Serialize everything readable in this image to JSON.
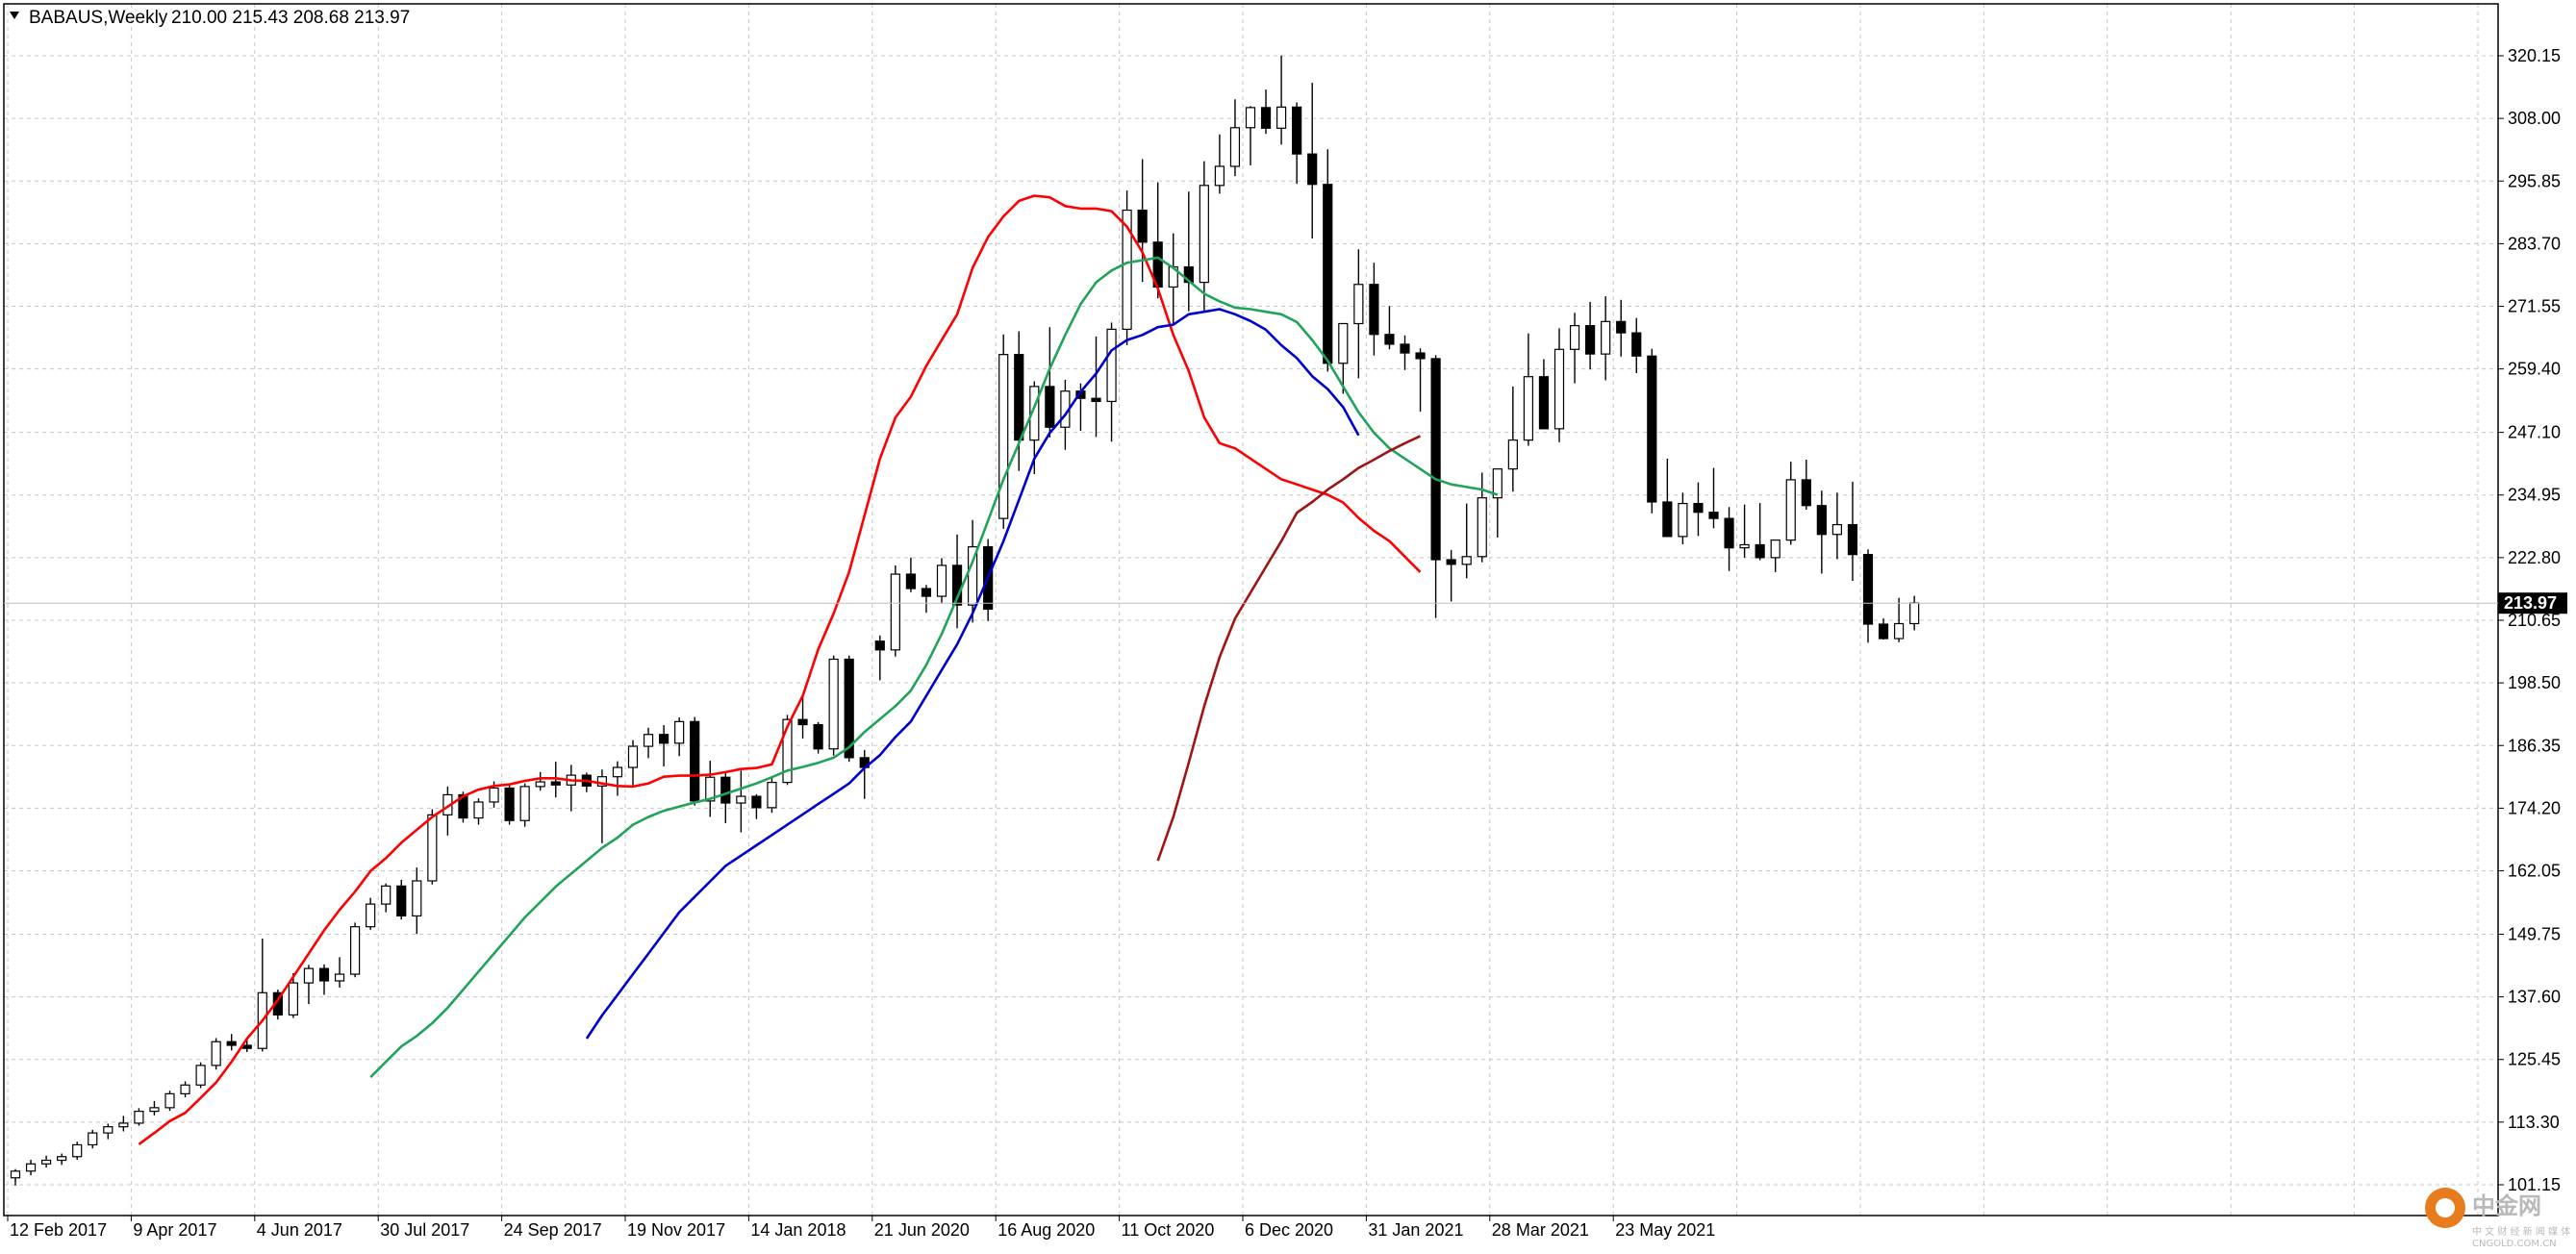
{
  "header": {
    "symbol": "BABAUS,Weekly",
    "ohlc": "210.00 215.43 208.68 213.97"
  },
  "current_price_label": "213.97",
  "watermark": {
    "brand_cn": "中金网",
    "sub_cn": "中 文 财 经 新 闻 媒 体",
    "sub_en": "CNGOLD.COM.CN"
  },
  "colors": {
    "background": "#ffffff",
    "grid": "#c8c8c8",
    "bull_body": "#ffffff",
    "bear_body": "#000000",
    "ma_fast": "#ff0000",
    "ma_mid": "#21a35a",
    "ma_slow": "#0000cd",
    "ma_long": "#a01414"
  },
  "chart_data": {
    "type": "candlestick",
    "title": "BABAUS,Weekly",
    "y_ticks": [
      320.15,
      308.0,
      295.85,
      283.7,
      271.55,
      259.4,
      247.1,
      234.95,
      222.8,
      210.65,
      198.5,
      186.35,
      174.2,
      162.05,
      149.75,
      137.6,
      125.45,
      113.3,
      101.15
    ],
    "y_tick_labels": [
      "320.15",
      "308.00",
      "295.85",
      "283.70",
      "271.55",
      "259.40",
      "247.10",
      "234.95",
      "222.80",
      "210.65",
      "198.50",
      "186.35",
      "174.20",
      "162.05",
      "149.75",
      "137.60",
      "125.45",
      "113.30",
      "101.15"
    ],
    "ylim": [
      96.5,
      324.0
    ],
    "x_tick_labels": [
      "12 Feb 2017",
      "9 Apr 2017",
      "4 Jun 2017",
      "30 Jul 2017",
      "24 Sep 2017",
      "19 Nov 2017",
      "14 Jan 2018",
      "21 Jun 2020",
      "16 Aug 2020",
      "11 Oct 2020",
      "6 Dec 2020",
      "31 Jan 2021",
      "28 Mar 2021",
      "23 May 2021"
    ],
    "x_tick_bar_index": [
      0,
      8,
      16,
      24,
      32,
      40,
      48,
      56,
      64,
      72,
      80,
      88,
      96,
      104
    ],
    "bars": [
      [
        102.5,
        104.2,
        101.0,
        103.8
      ],
      [
        103.8,
        106.0,
        103.0,
        105.2
      ],
      [
        105.2,
        106.8,
        104.5,
        105.9
      ],
      [
        105.9,
        107.2,
        105.0,
        106.6
      ],
      [
        106.6,
        109.5,
        106.0,
        108.9
      ],
      [
        108.9,
        111.8,
        108.2,
        111.2
      ],
      [
        111.2,
        113.0,
        110.0,
        112.4
      ],
      [
        112.4,
        114.5,
        111.5,
        113.1
      ],
      [
        113.1,
        116.0,
        112.6,
        115.4
      ],
      [
        115.4,
        117.4,
        114.6,
        116.1
      ],
      [
        116.1,
        119.4,
        115.5,
        118.8
      ],
      [
        118.8,
        121.2,
        118.1,
        120.5
      ],
      [
        120.5,
        124.9,
        119.9,
        124.3
      ],
      [
        124.3,
        129.6,
        123.5,
        128.9
      ],
      [
        128.9,
        130.4,
        127.2,
        128.2
      ],
      [
        128.2,
        129.3,
        126.9,
        127.6
      ],
      [
        127.6,
        148.9,
        127.0,
        138.4
      ],
      [
        138.4,
        139.0,
        133.2,
        134.1
      ],
      [
        134.1,
        142.2,
        133.5,
        140.3
      ],
      [
        140.3,
        143.8,
        136.2,
        143.1
      ],
      [
        143.1,
        143.9,
        138.0,
        140.7
      ],
      [
        140.7,
        145.3,
        139.4,
        142.0
      ],
      [
        142.0,
        152.0,
        141.4,
        151.2
      ],
      [
        151.2,
        156.8,
        150.6,
        155.6
      ],
      [
        155.6,
        159.6,
        154.0,
        159.1
      ],
      [
        159.1,
        160.3,
        152.6,
        153.3
      ],
      [
        153.3,
        162.7,
        149.8,
        160.1
      ],
      [
        160.1,
        174.0,
        159.4,
        172.9
      ],
      [
        172.9,
        178.4,
        168.9,
        176.8
      ],
      [
        176.8,
        177.4,
        171.4,
        172.3
      ],
      [
        172.3,
        176.1,
        171.0,
        175.4
      ],
      [
        175.4,
        179.4,
        174.3,
        178.1
      ],
      [
        178.1,
        179.0,
        171.0,
        171.8
      ],
      [
        171.8,
        179.0,
        170.6,
        178.4
      ],
      [
        178.4,
        181.2,
        177.6,
        179.3
      ],
      [
        179.3,
        183.2,
        176.3,
        178.7
      ],
      [
        178.7,
        182.6,
        173.6,
        180.6
      ],
      [
        180.6,
        181.1,
        177.3,
        178.5
      ],
      [
        178.5,
        181.7,
        167.4,
        180.3
      ],
      [
        180.3,
        183.3,
        176.6,
        182.1
      ],
      [
        182.1,
        187.4,
        178.6,
        186.2
      ],
      [
        186.2,
        189.8,
        183.9,
        188.5
      ],
      [
        188.5,
        190.3,
        182.3,
        186.8
      ],
      [
        186.8,
        191.8,
        184.3,
        191.0
      ],
      [
        191.0,
        191.9,
        174.7,
        175.6
      ],
      [
        175.6,
        183.4,
        172.5,
        180.2
      ],
      [
        180.2,
        181.0,
        171.3,
        175.2
      ],
      [
        175.2,
        181.5,
        169.5,
        176.5
      ],
      [
        176.5,
        176.9,
        172.1,
        174.3
      ],
      [
        174.3,
        180.0,
        173.3,
        179.2
      ],
      [
        179.2,
        192.3,
        178.7,
        191.4
      ],
      [
        191.4,
        195.8,
        187.7,
        190.4
      ],
      [
        190.4,
        190.9,
        184.8,
        185.7
      ],
      [
        185.7,
        203.8,
        184.4,
        203.1
      ],
      [
        203.1,
        203.8,
        183.2,
        184.0
      ],
      [
        184.0,
        185.5,
        176.0,
        182.1
      ],
      [
        206.6,
        207.7,
        199.0,
        204.9
      ],
      [
        204.9,
        221.3,
        203.6,
        219.6
      ],
      [
        219.6,
        222.8,
        216.1,
        216.8
      ],
      [
        216.8,
        217.5,
        212.1,
        215.3
      ],
      [
        215.3,
        222.7,
        214.0,
        221.3
      ],
      [
        221.3,
        227.3,
        209.1,
        213.6
      ],
      [
        213.6,
        230.1,
        210.2,
        224.9
      ],
      [
        224.9,
        226.4,
        210.5,
        212.8
      ],
      [
        230.4,
        266.1,
        228.4,
        262.2
      ],
      [
        262.2,
        266.7,
        239.6,
        245.6
      ],
      [
        245.6,
        257.0,
        239.0,
        256.0
      ],
      [
        256.0,
        267.5,
        246.1,
        248.1
      ],
      [
        248.1,
        257.3,
        243.7,
        255.1
      ],
      [
        255.1,
        256.6,
        247.4,
        253.7
      ],
      [
        253.7,
        265.7,
        246.2,
        253.1
      ],
      [
        253.1,
        268.4,
        245.3,
        267.1
      ],
      [
        267.1,
        294.0,
        264.0,
        290.2
      ],
      [
        290.2,
        300.1,
        276.3,
        284.0
      ],
      [
        284.0,
        295.6,
        273.1,
        275.3
      ],
      [
        275.3,
        285.7,
        268.1,
        279.2
      ],
      [
        279.2,
        293.8,
        270.6,
        276.2
      ],
      [
        276.2,
        299.7,
        270.4,
        295.0
      ],
      [
        295.0,
        304.9,
        293.4,
        298.7
      ],
      [
        298.7,
        311.7,
        296.8,
        306.2
      ],
      [
        306.2,
        310.4,
        298.9,
        310.1
      ],
      [
        310.1,
        313.6,
        305.0,
        306.1
      ],
      [
        306.1,
        320.2,
        302.9,
        310.2
      ],
      [
        310.2,
        311.1,
        295.3,
        301.1
      ],
      [
        301.1,
        314.9,
        284.7,
        295.2
      ],
      [
        295.2,
        302.0,
        258.9,
        260.5
      ],
      [
        260.5,
        261.0,
        254.6,
        268.2
      ],
      [
        268.2,
        282.6,
        257.6,
        275.8
      ],
      [
        275.8,
        280.0,
        262.0,
        266.1
      ],
      [
        266.1,
        271.6,
        263.2,
        264.2
      ],
      [
        264.2,
        265.9,
        259.2,
        262.5
      ],
      [
        262.5,
        263.4,
        251.1,
        261.4
      ],
      [
        261.4,
        262.1,
        211.1,
        222.4
      ],
      [
        222.4,
        224.3,
        214.3,
        221.5
      ],
      [
        221.5,
        233.3,
        218.8,
        223.0
      ],
      [
        223.0,
        239.3,
        221.9,
        234.4
      ],
      [
        234.4,
        240.1,
        226.7,
        240.0
      ],
      [
        240.0,
        256.0,
        235.6,
        245.6
      ],
      [
        245.6,
        266.3,
        244.5,
        257.9
      ],
      [
        257.9,
        261.3,
        249.6,
        247.8
      ],
      [
        247.8,
        267.3,
        245.2,
        263.2
      ],
      [
        263.2,
        270.3,
        256.6,
        267.8
      ],
      [
        267.8,
        272.4,
        259.3,
        262.3
      ],
      [
        262.3,
        273.5,
        257.2,
        268.6
      ],
      [
        268.6,
        272.8,
        261.8,
        266.4
      ],
      [
        266.4,
        269.3,
        258.6,
        261.9
      ],
      [
        261.9,
        263.3,
        231.4,
        233.6
      ],
      [
        233.6,
        242.0,
        228.5,
        226.9
      ],
      [
        226.9,
        235.4,
        225.4,
        233.3
      ],
      [
        233.3,
        237.4,
        227.0,
        231.6
      ],
      [
        231.6,
        240.2,
        228.5,
        230.4
      ],
      [
        230.4,
        232.6,
        220.2,
        224.7
      ],
      [
        224.7,
        233.1,
        222.8,
        225.3
      ],
      [
        225.3,
        233.4,
        222.3,
        222.8
      ],
      [
        222.8,
        226.2,
        220.0,
        226.2
      ],
      [
        226.2,
        241.4,
        225.3,
        237.9
      ],
      [
        237.9,
        241.8,
        232.1,
        232.9
      ],
      [
        232.9,
        235.8,
        219.7,
        227.3
      ],
      [
        227.3,
        235.4,
        222.5,
        229.2
      ],
      [
        229.2,
        237.5,
        218.3,
        223.4
      ],
      [
        223.4,
        224.4,
        206.3,
        209.9
      ],
      [
        209.9,
        211.0,
        206.9,
        207.1
      ],
      [
        207.1,
        215.0,
        206.4,
        210.0
      ],
      [
        210.0,
        215.4,
        208.7,
        214.0
      ]
    ],
    "series": [
      {
        "name": "",
        "color": "#ff0000",
        "from_bar": 8,
        "values": [
          109,
          111.2,
          113.5,
          115.1,
          118,
          121,
          125,
          129.5,
          133,
          137,
          141.5,
          146,
          150.5,
          154.5,
          158,
          162,
          164.5,
          167.5,
          170,
          172.5,
          174.5,
          176.5,
          177.8,
          178.5,
          178.8,
          179.5,
          180,
          180,
          179.6,
          179.5,
          179,
          178.5,
          178.4,
          179,
          180.3,
          180.5,
          180.5,
          180.7,
          181.2,
          181.8,
          182,
          182.7,
          190,
          196,
          205,
          212,
          220,
          231,
          242,
          250,
          254,
          260,
          265,
          270,
          279,
          285,
          289,
          292,
          293,
          292.7,
          291,
          290.5,
          290.5,
          290,
          287,
          282,
          275,
          266,
          259,
          250,
          245,
          244,
          242,
          240,
          238,
          237,
          236,
          235,
          233.5,
          230.5,
          228,
          226,
          223,
          220
        ]
      },
      {
        "name": "",
        "color": "#21a35a",
        "from_bar": 23,
        "values": [
          122,
          125,
          128,
          130,
          132.5,
          135.5,
          139,
          142.5,
          146,
          149.5,
          153,
          156,
          159,
          161.5,
          164,
          166.5,
          168.5,
          171,
          172.5,
          173.7,
          174.5,
          175.3,
          176,
          177,
          178,
          179,
          180.2,
          181.5,
          182.2,
          183,
          184,
          186,
          189,
          191.5,
          194,
          197,
          202,
          208,
          215,
          222,
          230,
          238,
          245,
          252,
          259.5,
          266,
          272,
          276.2,
          278.5,
          280,
          280.5,
          281,
          279,
          276.5,
          274,
          272.5,
          271.3,
          271,
          270.5,
          270,
          268.5,
          265,
          261,
          256,
          251,
          247,
          244,
          242,
          240,
          238,
          237,
          236.5,
          236,
          235
        ]
      },
      {
        "name": "",
        "color": "#0000cd",
        "from_bar": 37,
        "values": [
          129.5,
          134,
          138,
          142,
          146,
          150,
          154,
          157,
          160,
          163,
          165,
          167,
          169,
          171,
          173,
          175,
          177,
          179,
          182,
          184.5,
          188,
          191,
          196,
          201,
          206,
          212,
          219,
          226,
          234,
          242,
          247,
          250.5,
          255,
          258.5,
          263,
          265,
          266,
          267.5,
          268,
          270,
          270.5,
          271,
          270,
          268.7,
          267,
          264,
          261.5,
          258,
          255.5,
          252,
          246.5
        ]
      },
      {
        "name": "",
        "color": "#a01414",
        "from_bar": 74,
        "values": [
          164,
          172.5,
          183,
          194,
          203.5,
          211,
          216,
          221,
          226,
          231.5,
          233.6,
          236,
          238,
          240.2,
          241.8,
          243.5,
          245,
          246.4
        ]
      }
    ]
  }
}
